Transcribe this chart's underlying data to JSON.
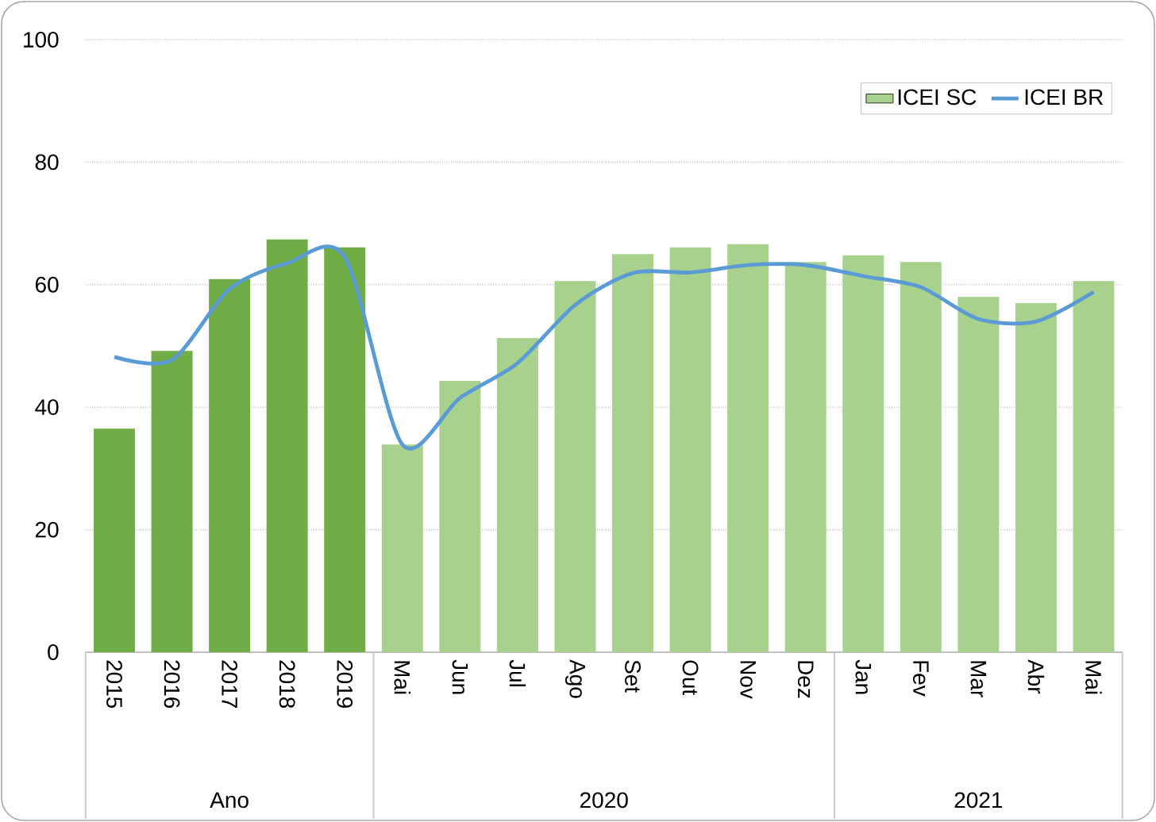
{
  "chart_data": {
    "type": "bar",
    "categories": [
      "2015",
      "2016",
      "2017",
      "2018",
      "2019",
      "Mai",
      "Jun",
      "Jul",
      "Ago",
      "Set",
      "Out",
      "Nov",
      "Dez",
      "Jan",
      "Fev",
      "Mar",
      "Abr",
      "Mai"
    ],
    "series": [
      {
        "name": "ICEI SC",
        "colors": [
          "#70ad47",
          "#70ad47",
          "#70ad47",
          "#70ad47",
          "#70ad47",
          "#a9d18e",
          "#a9d18e",
          "#a9d18e",
          "#a9d18e",
          "#a9d18e",
          "#a9d18e",
          "#a9d18e",
          "#a9d18e",
          "#a9d18e",
          "#a9d18e",
          "#a9d18e",
          "#a9d18e",
          "#a9d18e"
        ],
        "values": [
          36.5,
          49.2,
          60.9,
          67.4,
          66.1,
          33.9,
          44.3,
          51.3,
          60.6,
          65.0,
          66.1,
          66.6,
          63.7,
          64.8,
          63.7,
          58.0,
          57.0,
          60.6
        ]
      },
      {
        "name": "ICEI BR",
        "type": "line",
        "color": "#5b9bd5",
        "values": [
          48.2,
          47.7,
          59.3,
          63.5,
          64.5,
          33.9,
          41.5,
          47.2,
          56.7,
          61.9,
          62.0,
          63.2,
          63.2,
          61.4,
          59.6,
          54.4,
          54.0,
          58.8
        ]
      }
    ],
    "ylim": [
      0,
      100
    ],
    "yticks": [
      0,
      20,
      40,
      60,
      80,
      100
    ],
    "grid": "y",
    "legend": "top right",
    "annotations": [
      "Ano",
      "2020",
      "2021"
    ]
  }
}
